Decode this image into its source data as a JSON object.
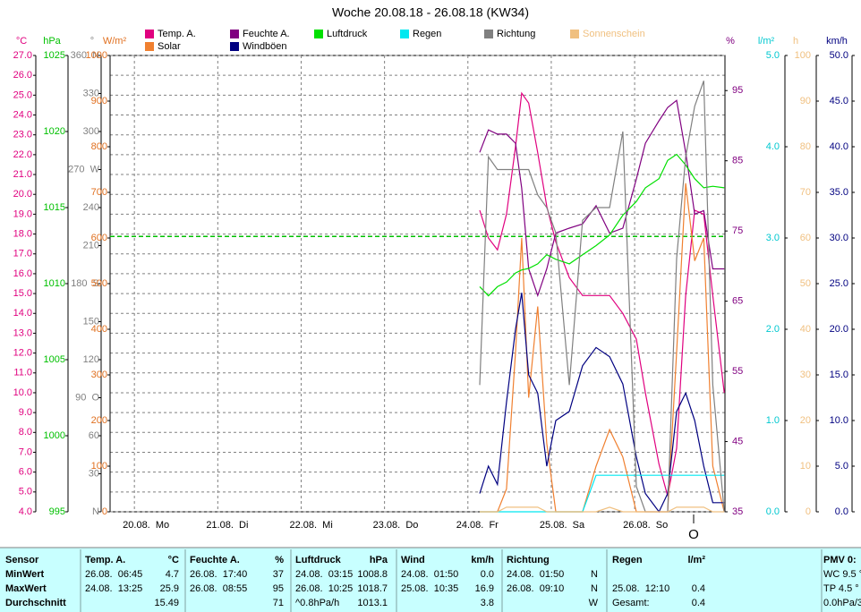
{
  "chart_data": {
    "type": "line",
    "title": "Woche 20.08.18 - 26.08.18 (KW34)",
    "x": [
      99.4,
      101.9,
      104.5,
      107.1,
      109.7,
      111.5,
      113.5,
      116.1,
      118.7,
      121.3,
      125.2,
      129.0,
      132.9,
      136.8,
      140.6,
      144.5,
      147.1,
      151.0,
      153.5,
      156.1,
      158.7,
      161.3,
      163.9,
      166.5,
      169.8
    ],
    "xlim": [
      -7,
      170
    ],
    "xticks": [
      {
        "value": 0,
        "label": "20.08.  Mo"
      },
      {
        "value": 24,
        "label": "21.08.  Di"
      },
      {
        "value": 48,
        "label": "22.08.  Mi"
      },
      {
        "value": 72,
        "label": "23.08.  Do"
      },
      {
        "value": 96,
        "label": "24.08.  Fr"
      },
      {
        "value": 120,
        "label": "25.08.  Sa"
      },
      {
        "value": 144,
        "label": "26.08.  So"
      }
    ],
    "grid": true,
    "axes": [
      {
        "unit": "°C",
        "color": "#e0007f",
        "lim": [
          4,
          27
        ],
        "ticks": [
          {
            "value": 4,
            "label": "4.0"
          },
          {
            "value": 5,
            "label": "5.0"
          },
          {
            "value": 6,
            "label": "6.0"
          },
          {
            "value": 7,
            "label": "7.0"
          },
          {
            "value": 8,
            "label": "8.0"
          },
          {
            "value": 9,
            "label": "9.0"
          },
          {
            "value": 10,
            "label": "10.0"
          },
          {
            "value": 11,
            "label": "11.0"
          },
          {
            "value": 12,
            "label": "12.0"
          },
          {
            "value": 13,
            "label": "13.0"
          },
          {
            "value": 14,
            "label": "14.0"
          },
          {
            "value": 15,
            "label": "15.0"
          },
          {
            "value": 16,
            "label": "16.0"
          },
          {
            "value": 17,
            "label": "17.0"
          },
          {
            "value": 18,
            "label": "18.0"
          },
          {
            "value": 19,
            "label": "19.0"
          },
          {
            "value": 20,
            "label": "20.0"
          },
          {
            "value": 21,
            "label": "21.0"
          },
          {
            "value": 22,
            "label": "22.0"
          },
          {
            "value": 23,
            "label": "23.0"
          },
          {
            "value": 24,
            "label": "24.0"
          },
          {
            "value": 25,
            "label": "25.0"
          },
          {
            "value": 26,
            "label": "26.0"
          },
          {
            "value": 27,
            "label": "27.0"
          }
        ]
      },
      {
        "unit": "hPa",
        "color": "#00c000",
        "lim": [
          995,
          1025
        ],
        "ticks": [
          995,
          1000,
          1005,
          1010,
          1015,
          1020,
          1025
        ]
      },
      {
        "unit": "°",
        "color": "#808080",
        "lim": [
          0,
          360
        ],
        "ticks": [
          {
            "value": 0,
            "label": "N"
          },
          30,
          60,
          {
            "value": 90,
            "label": "90  O"
          },
          120,
          150,
          {
            "value": 180,
            "label": "180  S"
          },
          210,
          240,
          {
            "value": 270,
            "label": "270  W"
          },
          300,
          330,
          {
            "value": 360,
            "label": "360  N"
          }
        ]
      },
      {
        "unit": "W/m²",
        "color": "#e07020",
        "lim": [
          0,
          1000
        ],
        "ticks": [
          0,
          100,
          200,
          300,
          400,
          500,
          600,
          700,
          800,
          900,
          1000
        ]
      },
      {
        "unit": "%",
        "color": "#800080",
        "lim": [
          35,
          100
        ],
        "ticks": [
          35,
          45,
          55,
          65,
          75,
          85,
          95
        ]
      },
      {
        "unit": "l/m²",
        "color": "#00c8d0",
        "lim": [
          0,
          5
        ],
        "ticks": [
          {
            "value": 0,
            "label": "0.0"
          },
          {
            "value": 1,
            "label": "1.0"
          },
          {
            "value": 2,
            "label": "2.0"
          },
          {
            "value": 3,
            "label": "3.0"
          },
          {
            "value": 4,
            "label": "4.0"
          },
          {
            "value": 5,
            "label": "5.0"
          }
        ]
      },
      {
        "unit": "h",
        "color": "#f0c080",
        "lim": [
          0,
          100
        ],
        "ticks": [
          0,
          10,
          20,
          30,
          40,
          50,
          60,
          70,
          80,
          90,
          100
        ]
      },
      {
        "unit": "km/h",
        "color": "#000080",
        "lim": [
          0,
          50
        ],
        "ticks": [
          {
            "value": 0,
            "label": "0.0"
          },
          {
            "value": 5,
            "label": "5.0"
          },
          {
            "value": 10,
            "label": "10.0"
          },
          {
            "value": 15,
            "label": "15.0"
          },
          {
            "value": 20,
            "label": "20.0"
          },
          {
            "value": 25,
            "label": "25.0"
          },
          {
            "value": 30,
            "label": "30.0"
          },
          {
            "value": 35,
            "label": "35.0"
          },
          {
            "value": 40,
            "label": "40.0"
          },
          {
            "value": 45,
            "label": "45.0"
          },
          {
            "value": 50,
            "label": "50.0"
          }
        ]
      }
    ],
    "series": [
      {
        "name": "Temp. A.",
        "color": "#e0007f",
        "axis": 0,
        "values": [
          19.2,
          17.8,
          17.2,
          19.0,
          22.4,
          25.1,
          24.6,
          22.1,
          19.4,
          17.6,
          15.8,
          14.9,
          14.9,
          14.9,
          14.0,
          12.7,
          10.0,
          6.4,
          4.8,
          7.2,
          14.9,
          19.2,
          19.0,
          14.9,
          10.0
        ]
      },
      {
        "name": "Solar",
        "color": "#f08030",
        "axis": 3,
        "values": [
          0,
          0,
          0,
          50,
          350,
          600,
          250,
          450,
          150,
          0,
          0,
          0,
          100,
          180,
          120,
          0,
          0,
          0,
          0,
          350,
          720,
          550,
          600,
          100,
          0
        ]
      },
      {
        "name": "Feuchte A.",
        "color": "#800080",
        "axis": 4,
        "values": [
          86.2,
          89.4,
          88.8,
          88.8,
          87.5,
          81.1,
          69.6,
          65.8,
          69.6,
          74.7,
          75.4,
          76.0,
          78.6,
          74.7,
          75.4,
          82.4,
          87.5,
          90.7,
          92.6,
          93.6,
          86.2,
          77.4,
          77.9,
          69.6,
          69.6
        ]
      },
      {
        "name": "Windböen",
        "color": "#000080",
        "axis": 7,
        "values": [
          2,
          5,
          3,
          12,
          20,
          24,
          15,
          13,
          5,
          10,
          11,
          16,
          18,
          17,
          14,
          6,
          2,
          0,
          2,
          11,
          13,
          10,
          5,
          1,
          1
        ]
      },
      {
        "name": "Luftdruck",
        "color": "#00e000",
        "axis": 1,
        "values": [
          1009.8,
          1009.2,
          1009.8,
          1010.1,
          1010.7,
          1010.9,
          1011.0,
          1011.3,
          1011.9,
          1011.6,
          1011.3,
          1011.9,
          1012.5,
          1013.2,
          1014.5,
          1015.4,
          1016.3,
          1016.9,
          1018.1,
          1018.5,
          1017.8,
          1016.9,
          1016.3,
          1016.4,
          1016.3
        ]
      },
      {
        "name": "Regen",
        "color": "#00e8f0",
        "axis": 5,
        "values": [
          0,
          0,
          0,
          0,
          0,
          0,
          0,
          0,
          0,
          0,
          0,
          0,
          0.4,
          0.4,
          0.4,
          0.4,
          0.4,
          0.4,
          0.4,
          0.4,
          0.4,
          0.4,
          0.4,
          0.4,
          0.4
        ]
      },
      {
        "name": "Richtung",
        "color": "#808080",
        "axis": 2,
        "values": [
          100,
          280,
          270,
          270,
          270,
          270,
          270,
          250,
          240,
          220,
          100,
          230,
          240,
          240,
          300,
          20,
          0,
          0,
          0,
          200,
          280,
          320,
          340,
          100,
          0
        ]
      },
      {
        "name": "Sonnenschein",
        "color": "#f0c080",
        "axis": 6,
        "values": [
          0,
          0,
          0,
          1,
          1,
          1,
          1,
          1,
          0,
          0,
          0,
          0,
          0,
          1,
          0,
          0,
          0,
          0,
          0,
          1,
          1,
          1,
          1,
          0,
          0
        ]
      }
    ],
    "reference_lines": [
      {
        "axis": 1,
        "value": 1013.1,
        "color": "#00c000"
      }
    ],
    "wind_direction_label": "O"
  },
  "table": {
    "header": [
      "Sensor",
      "Temp. A.",
      "°C",
      "Feuchte A.",
      "%",
      "Luftdruck",
      "hPa",
      "Wind",
      "km/h",
      "Richtung",
      null,
      "Regen",
      "l/m²",
      "PMV 0:"
    ],
    "rows": [
      [
        "MinWert",
        "26.08.  06:45",
        "4.7",
        "26.08.  17:40",
        "37",
        "24.08.  03:15",
        "1008.8",
        "24.08.  01:50",
        "0.0",
        "24.08.  01:50",
        "N",
        null,
        null,
        "WC 9.5 °"
      ],
      [
        "MaxWert",
        "24.08.  13:25",
        "25.9",
        "26.08.  08:55",
        "95",
        "26.08.  10:25",
        "1018.7",
        "25.08.  10:35",
        "16.9",
        "26.08.  09:10",
        "N",
        "25.08.  12:10",
        "0.4",
        "TP 4.5 °"
      ],
      [
        "Durchschnitt",
        null,
        "15.49",
        null,
        "71",
        "^0.8hPa/h",
        "1013.1",
        null,
        "3.8",
        null,
        "W",
        "Gesamt:",
        "0.4",
        "0.0hPa/3"
      ]
    ]
  }
}
